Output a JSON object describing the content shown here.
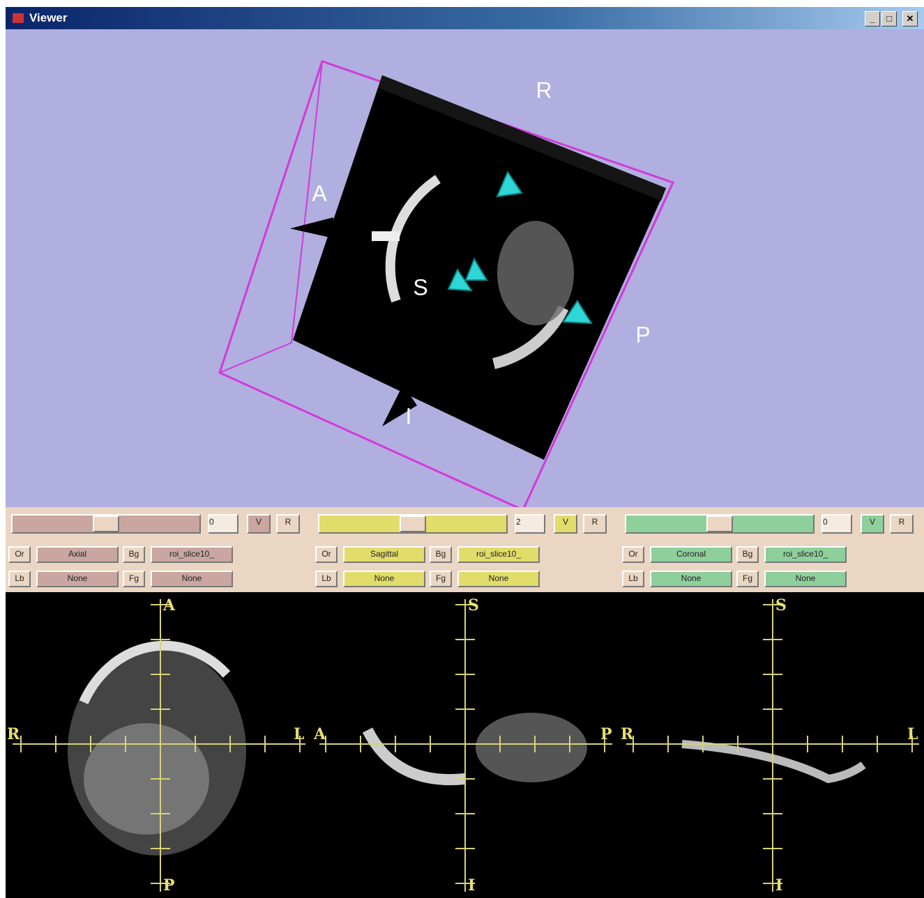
{
  "window": {
    "title": "Viewer"
  },
  "view3d": {
    "labels": {
      "r": "R",
      "a": "A",
      "s": "S",
      "p": "P",
      "i": "I"
    }
  },
  "panels": [
    {
      "slider_value": "0",
      "visible": "V",
      "reset": "R",
      "or_label": "Or",
      "orientation": "Axial",
      "bg_label": "Bg",
      "background": "roi_slice10_",
      "lb_label": "Lb",
      "label_layer": "None",
      "fg_label": "Fg",
      "foreground": "None",
      "color": "#c9a6a0"
    },
    {
      "slider_value": "2",
      "visible": "V",
      "reset": "R",
      "or_label": "Or",
      "orientation": "Sagittal",
      "bg_label": "Bg",
      "background": "roi_slice10_",
      "lb_label": "Lb",
      "label_layer": "None",
      "fg_label": "Fg",
      "foreground": "None",
      "color": "#e2dc6a"
    },
    {
      "slider_value": "0",
      "visible": "V",
      "reset": "R",
      "or_label": "Or",
      "orientation": "Coronal",
      "bg_label": "Bg",
      "background": "roi_slice10_",
      "lb_label": "Lb",
      "label_layer": "None",
      "fg_label": "Fg",
      "foreground": "None",
      "color": "#8fcf9c"
    }
  ],
  "slices": [
    {
      "top": "A",
      "left": "R",
      "right": "L",
      "bottom": "P"
    },
    {
      "top": "S",
      "left": "A",
      "right": "P",
      "bottom": "I"
    },
    {
      "top": "S",
      "left": "R",
      "right": "L",
      "bottom": "I"
    }
  ]
}
